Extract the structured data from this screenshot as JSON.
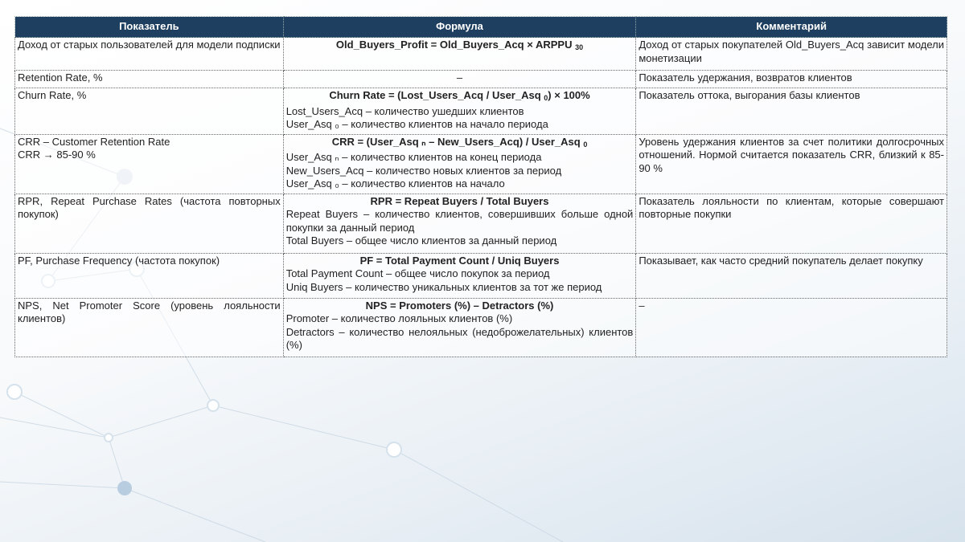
{
  "table": {
    "headers": [
      "Показатель",
      "Формула",
      "Комментарий"
    ],
    "rows": [
      {
        "metric": "Доход от старых пользователей для модели подписки",
        "formula": "Old_Buyers_Profit = Old_Buyers_Acq × ARPPU",
        "formula_sub": "30",
        "formula_tail": "",
        "lines": [],
        "comment": "Доход от старых покупателей Old_Buyers_Acq зависит модели монетизации"
      },
      {
        "metric": "Retention Rate, %",
        "formula": "–",
        "formula_sub": "",
        "formula_tail": "",
        "lines": [],
        "comment": "Показатель удержания, возвратов клиентов"
      },
      {
        "metric": "Churn Rate, %",
        "formula": "Churn Rate = (Lost_Users_Acq / User_Asq",
        "formula_sub": "0",
        "formula_tail": ") × 100%",
        "lines": [
          "Lost_Users_Acq – количество ушедших клиентов",
          "User_Asq ₀ – количество клиентов на начало периода"
        ],
        "comment": "Показатель оттока, выгорания базы клиентов"
      },
      {
        "metric": "CRR – Customer Retention Rate",
        "metric2": "CRR → 85-90 %",
        "formula": "CRR = (User_Asq ₙ – New_Users_Acq) / User_Asq",
        "formula_sub": "0",
        "formula_tail": "",
        "lines": [
          "User_Asq ₙ – количество клиентов на конец периода",
          "New_Users_Acq – количество новых клиентов за период",
          "User_Asq ₀ – количество клиентов на начало"
        ],
        "comment": "Уровень удержания клиентов за счет политики долгосрочных отношений. Нормой считается показатель CRR, близкий к 85-90 %"
      },
      {
        "metric": "RPR, Repeat Purchase Rates (частота повторных покупок)",
        "formula": "RPR = Repeat Buyers / Total Buyers",
        "formula_sub": "",
        "formula_tail": "",
        "lines": [
          "Repeat Buyers – количество клиентов, совершивших больше одной покупки за данный период",
          "Total Buyers – общее число клиентов за данный период"
        ],
        "comment": "Показатель лояльности по клиентам, которые совершают повторные покупки"
      },
      {
        "metric": "PF, Purchase Frequency (частота покупок)",
        "formula": "PF = Total Payment Count / Uniq Buyers",
        "formula_sub": "",
        "formula_tail": "",
        "lines": [
          "Total Payment Count – общее число покупок за период",
          "Uniq Buyers – количество уникальных клиентов за тот же период"
        ],
        "comment": "Показывает, как часто средний покупатель делает покупку"
      },
      {
        "metric": "NPS, Net Promoter Score (уровень лояльности клиентов)",
        "formula": "NPS = Promoters (%) – Detractors (%)",
        "formula_sub": "",
        "formula_tail": "",
        "lines": [
          "Promoter – количество лояльных клиентов (%)",
          "Detractors – количество нелояльных (недоброжелательных) клиентов (%)"
        ],
        "comment": "–"
      }
    ]
  },
  "colors": {
    "header_bg": "#1f3f60",
    "header_text": "#ffffff"
  }
}
